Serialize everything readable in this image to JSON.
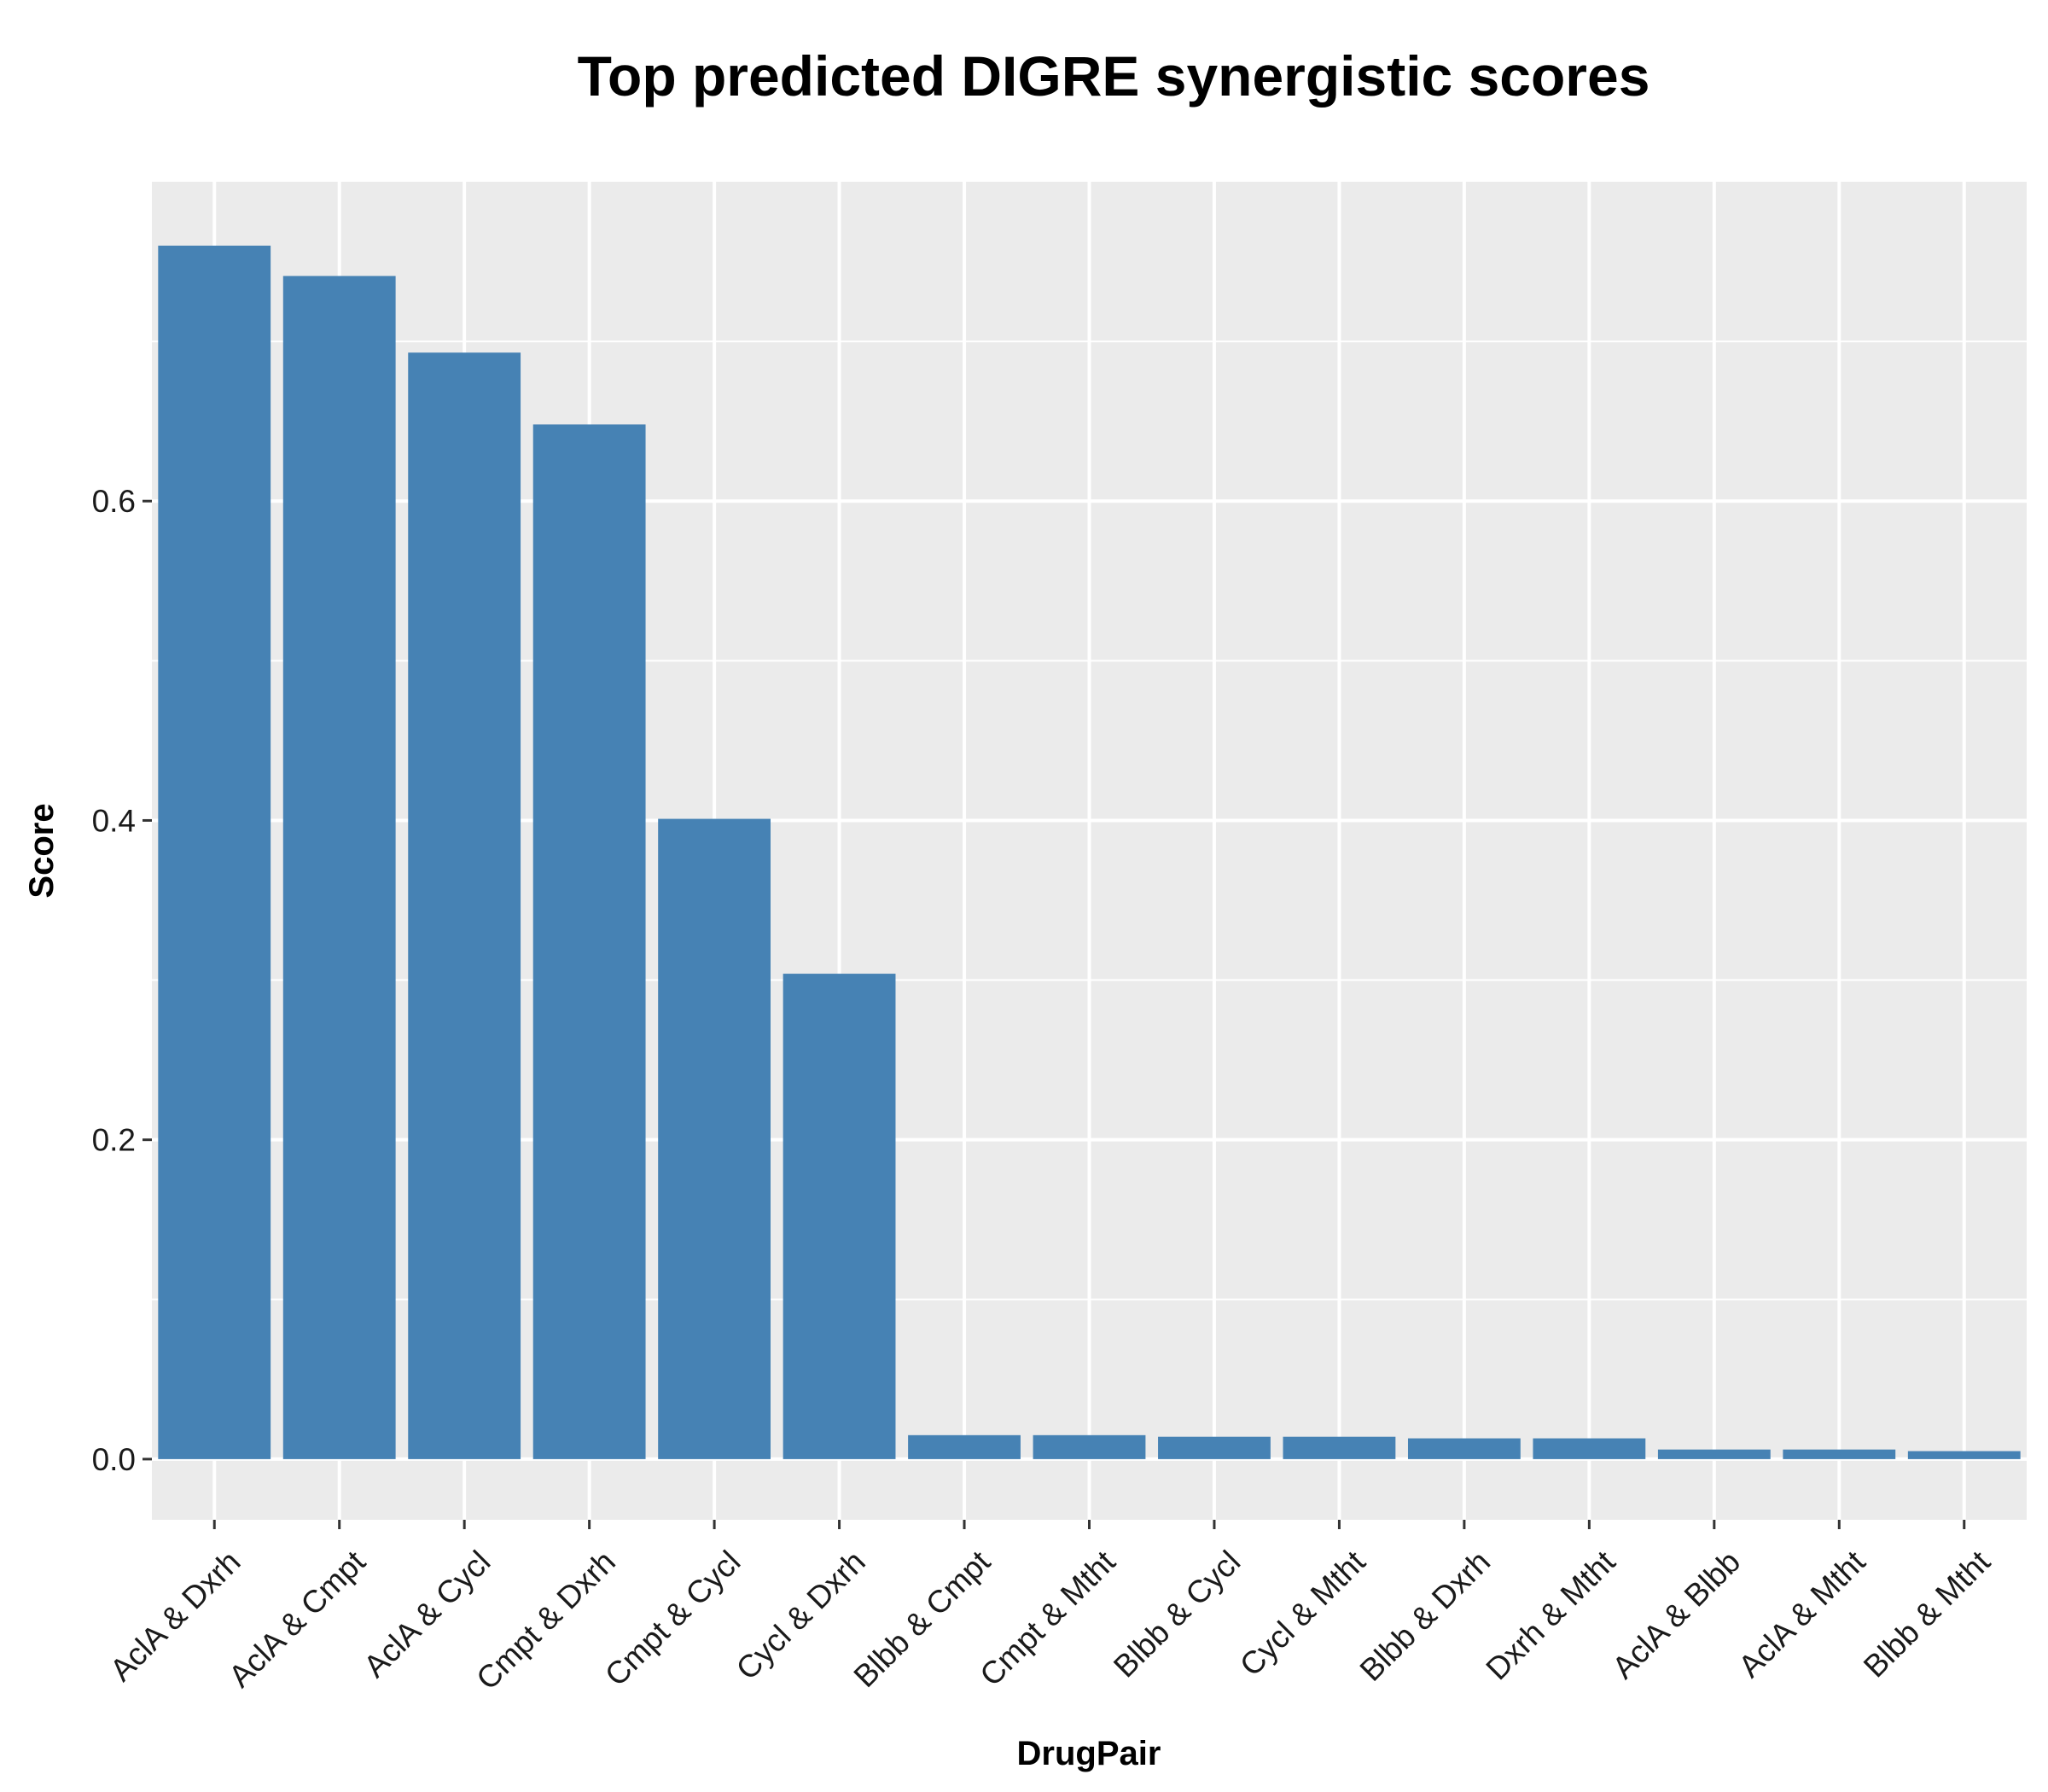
{
  "chart_data": {
    "type": "bar",
    "title": "Top predicted DIGRE synergistic scores",
    "xlabel": "DrugPair",
    "ylabel": "Score",
    "categories": [
      "AclA & Dxrh",
      "AclA & Cmpt",
      "AclA & Cycl",
      "Cmpt & Dxrh",
      "Cmpt & Cycl",
      "Cycl & Dxrh",
      "Blbb & Cmpt",
      "Cmpt & Mtht",
      "Blbb & Cycl",
      "Cycl & Mtht",
      "Blbb & Dxrh",
      "Dxrh & Mtht",
      "AclA & Blbb",
      "AclA & Mtht",
      "Blbb & Mtht"
    ],
    "values": [
      0.76,
      0.741,
      0.693,
      0.648,
      0.401,
      0.304,
      0.015,
      0.015,
      0.014,
      0.014,
      0.013,
      0.013,
      0.006,
      0.006,
      0.005
    ],
    "yticks": [
      0.0,
      0.2,
      0.4,
      0.6
    ],
    "ytick_labels": [
      "0.0",
      "0.2",
      "0.4",
      "0.6"
    ],
    "ylim": [
      -0.038,
      0.8
    ],
    "grid": true,
    "bar_color": "#4682b4",
    "panel_color": "#ebebeb",
    "grid_color": "#ffffff"
  }
}
